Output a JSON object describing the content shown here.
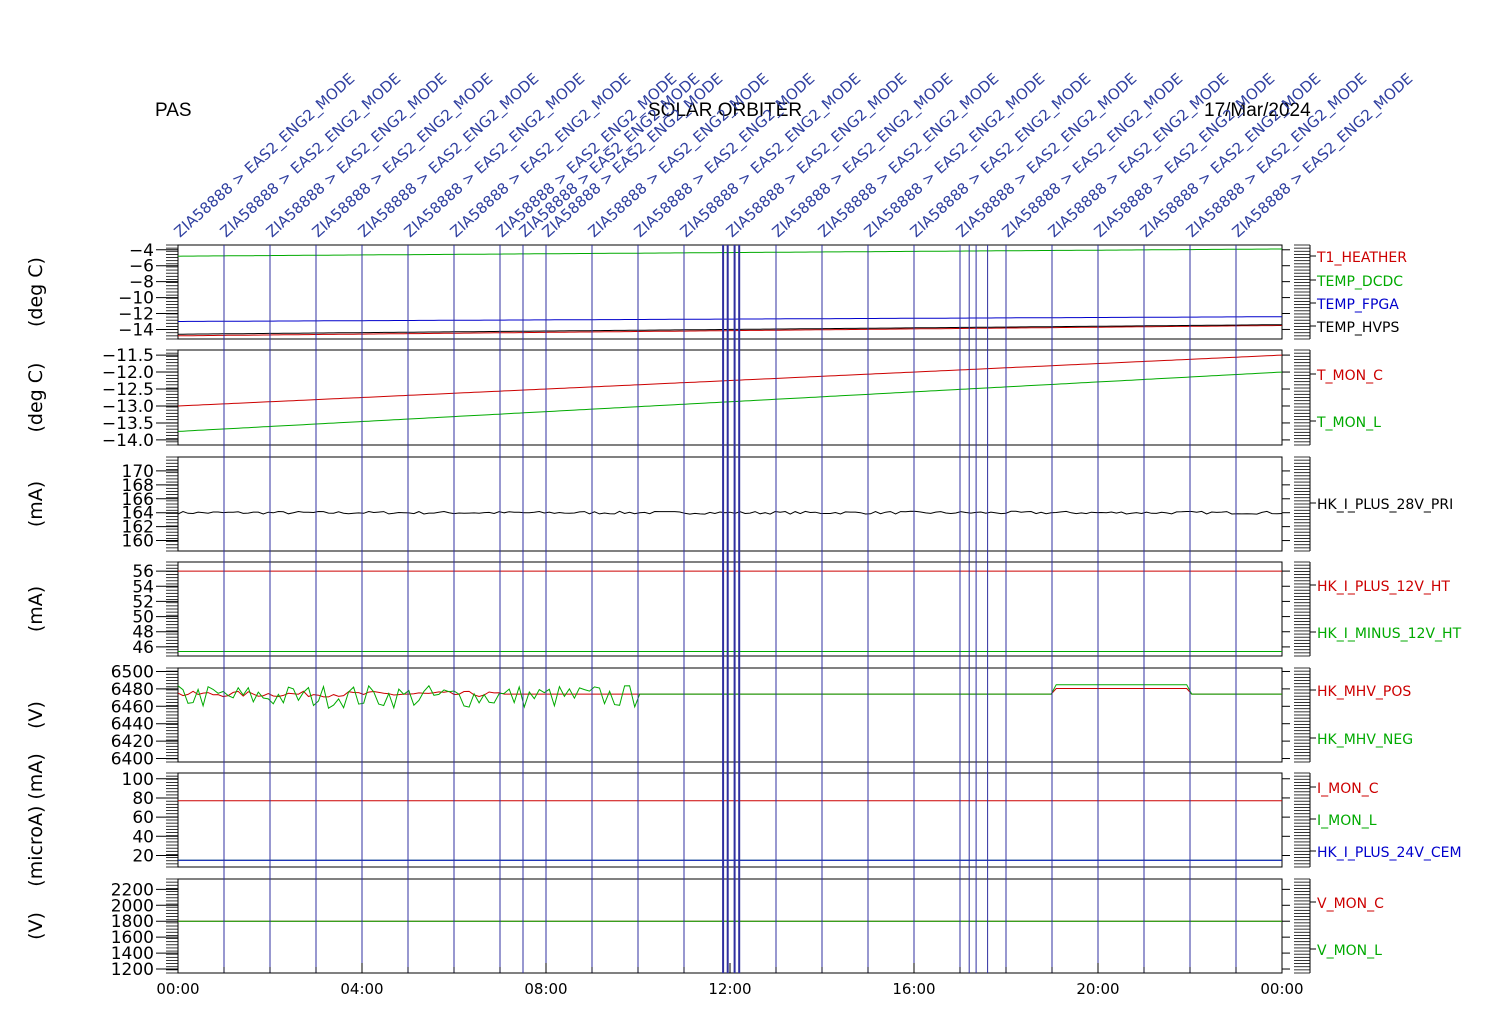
{
  "header": {
    "left": "PAS",
    "center": "SOLAR ORBITER",
    "right": "17/Mar/2024"
  },
  "event_labels": {
    "color": "#3040a0",
    "standard_text": "ZIA58888 > EAS2_ENG2_MODE",
    "standard_hours": [
      0,
      1,
      2,
      3,
      4,
      5,
      6,
      7,
      7.5,
      8,
      9,
      10,
      11,
      12,
      13,
      14,
      15,
      16,
      17,
      18,
      19,
      20,
      21,
      22,
      23
    ]
  },
  "chart_data": {
    "type": "line",
    "x_range_hours": [
      0,
      24
    ],
    "x_ticks": [
      "00:00",
      "04:00",
      "08:00",
      "12:00",
      "16:00",
      "20:00",
      "00:00"
    ],
    "vertical_markers_color": "#3030a0",
    "panels": [
      {
        "ylabel": "(deg C)",
        "ylim": [
          -15.2,
          -3.4
        ],
        "yticks": [
          {
            "v": -4,
            "label": "−4"
          },
          {
            "v": -6,
            "label": "−6"
          },
          {
            "v": -8,
            "label": "−8"
          },
          {
            "v": -10,
            "label": "−10"
          },
          {
            "v": -12,
            "label": "−12"
          },
          {
            "v": -14,
            "label": "−14"
          }
        ],
        "series": [
          {
            "name": "T1_HEATHER",
            "color": "#cc0000",
            "start": -14.8,
            "end": -13.5
          },
          {
            "name": "TEMP_DCDC",
            "color": "#00aa00",
            "start": -4.8,
            "end": -3.9
          },
          {
            "name": "TEMP_FPGA",
            "color": "#0000cc",
            "start": -13.0,
            "end": -12.4
          },
          {
            "name": "TEMP_HVPS",
            "color": "#000000",
            "start": -14.6,
            "end": -13.4
          }
        ]
      },
      {
        "ylabel": "(deg C)",
        "ylim": [
          -14.15,
          -11.35
        ],
        "yticks": [
          {
            "v": -11.5,
            "label": "−11.5"
          },
          {
            "v": -12.0,
            "label": "−12.0"
          },
          {
            "v": -12.5,
            "label": "−12.5"
          },
          {
            "v": -13.0,
            "label": "−13.0"
          },
          {
            "v": -13.5,
            "label": "−13.5"
          },
          {
            "v": -14.0,
            "label": "−14.0"
          }
        ],
        "series": [
          {
            "name": "T_MON_C",
            "color": "#cc0000",
            "start": -13.0,
            "end": -11.5
          },
          {
            "name": "T_MON_L",
            "color": "#00aa00",
            "start": -13.75,
            "end": -12.0
          }
        ]
      },
      {
        "ylabel": "(mA)",
        "ylim": [
          158.5,
          172
        ],
        "yticks": [
          {
            "v": 170,
            "label": "170"
          },
          {
            "v": 168,
            "label": "168"
          },
          {
            "v": 166,
            "label": "166"
          },
          {
            "v": 164,
            "label": "164"
          },
          {
            "v": 162,
            "label": "162"
          },
          {
            "v": 160,
            "label": "160"
          }
        ],
        "series": [
          {
            "name": "HK_I_PLUS_28V_PRI",
            "color": "#000000",
            "start": 164,
            "end": 164
          }
        ]
      },
      {
        "ylabel": "(mA)",
        "ylim": [
          44.8,
          57.2
        ],
        "yticks": [
          {
            "v": 56,
            "label": "56"
          },
          {
            "v": 54,
            "label": "54"
          },
          {
            "v": 52,
            "label": "52"
          },
          {
            "v": 50,
            "label": "50"
          },
          {
            "v": 48,
            "label": "48"
          },
          {
            "v": 46,
            "label": "46"
          }
        ],
        "series": [
          {
            "name": "HK_I_PLUS_12V_HT",
            "color": "#cc0000",
            "start": 56,
            "end": 56
          },
          {
            "name": "HK_I_MINUS_12V_HT",
            "color": "#00aa00",
            "start": 45.4,
            "end": 45.4
          }
        ]
      },
      {
        "ylabel": "(V)",
        "ylim": [
          6396,
          6504
        ],
        "yticks": [
          {
            "v": 6500,
            "label": "6500"
          },
          {
            "v": 6480,
            "label": "6480"
          },
          {
            "v": 6460,
            "label": "6460"
          },
          {
            "v": 6440,
            "label": "6440"
          },
          {
            "v": 6420,
            "label": "6420"
          },
          {
            "v": 6400,
            "label": "6400"
          }
        ],
        "series": [
          {
            "name": "HK_MHV_POS",
            "color": "#cc0000",
            "start": 6474,
            "end": 6474
          },
          {
            "name": "HK_MHV_NEG",
            "color": "#00aa00",
            "start": 6474,
            "end": 6474
          }
        ]
      },
      {
        "ylabel": "(microA) (mA)",
        "ylim": [
          8,
          106
        ],
        "yticks": [
          {
            "v": 100,
            "label": "100"
          },
          {
            "v": 80,
            "label": "80"
          },
          {
            "v": 60,
            "label": "60"
          },
          {
            "v": 40,
            "label": "40"
          },
          {
            "v": 20,
            "label": "20"
          }
        ],
        "series": [
          {
            "name": "I_MON_C",
            "color": "#cc0000",
            "start": 77,
            "end": 77
          },
          {
            "name": "I_MON_L",
            "color": "#00aa00",
            "start": 15,
            "end": 15
          },
          {
            "name": "HK_I_PLUS_24V_CEM",
            "color": "#0000cc",
            "start": 15,
            "end": 15
          }
        ]
      },
      {
        "ylabel": "(V)",
        "ylim": [
          1150,
          2330
        ],
        "yticks": [
          {
            "v": 2200,
            "label": "2200"
          },
          {
            "v": 2000,
            "label": "2000"
          },
          {
            "v": 1800,
            "label": "1800"
          },
          {
            "v": 1600,
            "label": "1600"
          },
          {
            "v": 1400,
            "label": "1400"
          },
          {
            "v": 1200,
            "label": "1200"
          }
        ],
        "series": [
          {
            "name": "V_MON_C",
            "color": "#cc0000",
            "start": 1800,
            "end": 1800
          },
          {
            "name": "V_MON_L",
            "color": "#00aa00",
            "start": 1800,
            "end": 1800
          }
        ]
      }
    ]
  }
}
